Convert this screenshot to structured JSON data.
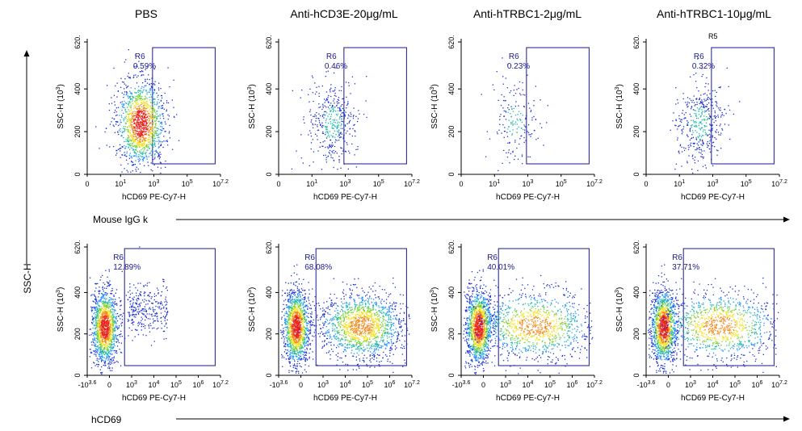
{
  "column_titles": [
    "PBS",
    "Anti-hCD3E-20μg/mL",
    "Anti-hTRBC1-2μg/mL",
    "Anti-hTRBC1-10μg/mL"
  ],
  "row_labels": [
    "Mouse IgG k",
    "hCD69"
  ],
  "y_side_label": "SSC-H",
  "stray_label": "R5",
  "colors": {
    "gate": "#1a1a8c",
    "gate_label": "#1a1a8c",
    "axis": "#000000",
    "stray": "#d4a14a"
  },
  "chart_data": [
    {
      "type": "scatter",
      "row": 0,
      "col": 0,
      "title": "PBS",
      "xlabel": "hCD69 PE-Cy7-H",
      "ylabel": "SSC-H (10^3)",
      "x_ticks": [
        "0",
        "10^1",
        "10^3",
        "10^5",
        "10^7.2"
      ],
      "y_ticks": [
        "0",
        "200",
        "400",
        "620."
      ],
      "ylim": [
        0,
        620
      ],
      "gate": {
        "name": "R6",
        "percent": "0.59%"
      },
      "density": "high"
    },
    {
      "type": "scatter",
      "row": 0,
      "col": 1,
      "title": "Anti-hCD3E-20μg/mL",
      "xlabel": "hCD69 PE-Cy7-H",
      "ylabel": "SSC-H (10^3)",
      "x_ticks": [
        "0",
        "10^1",
        "10^3",
        "10^5",
        "10^7.2"
      ],
      "y_ticks": [
        "0",
        "200",
        "400",
        "620."
      ],
      "ylim": [
        0,
        620
      ],
      "gate": {
        "name": "R6",
        "percent": "0.46%"
      },
      "density": "medium"
    },
    {
      "type": "scatter",
      "row": 0,
      "col": 2,
      "title": "Anti-hTRBC1-2μg/mL",
      "xlabel": "hCD69 PE-Cy7-H",
      "ylabel": "SSC-H (10^3)",
      "x_ticks": [
        "0",
        "10^1",
        "10^3",
        "10^5",
        "10^7.2"
      ],
      "y_ticks": [
        "0",
        "200",
        "400",
        "620."
      ],
      "ylim": [
        0,
        620
      ],
      "gate": {
        "name": "R6",
        "percent": "0.23%"
      },
      "density": "low"
    },
    {
      "type": "scatter",
      "row": 0,
      "col": 3,
      "title": "Anti-hTRBC1-10μg/mL",
      "xlabel": "hCD69 PE-Cy7-H",
      "ylabel": "SSC-H (10^3)",
      "x_ticks": [
        "0",
        "10^1",
        "10^3",
        "10^5",
        "10^7.2"
      ],
      "y_ticks": [
        "0",
        "200",
        "400",
        "620."
      ],
      "ylim": [
        0,
        620
      ],
      "gate": {
        "name": "R6",
        "percent": "0.32%"
      },
      "density": "medium"
    },
    {
      "type": "scatter",
      "row": 1,
      "col": 0,
      "xlabel": "hCD69 PE-Cy7-H",
      "ylabel": "SSC-H (10^3)",
      "x_ticks": [
        "-10^3.6",
        "0",
        "10^3",
        "10^4",
        "10^5",
        "10^6",
        "10^7.2"
      ],
      "y_ticks": [
        "0",
        "200",
        "400",
        "620."
      ],
      "ylim": [
        0,
        620
      ],
      "gate": {
        "name": "R6",
        "percent": "12.89%"
      },
      "density": "high"
    },
    {
      "type": "scatter",
      "row": 1,
      "col": 1,
      "xlabel": "hCD69 PE-Cy7-H",
      "ylabel": "SSC-H (10^3)",
      "x_ticks": [
        "-10^3.6",
        "0",
        "10^3",
        "10^4",
        "10^5",
        "10^6",
        "10^7.2"
      ],
      "y_ticks": [
        "0",
        "200",
        "400",
        "620."
      ],
      "ylim": [
        0,
        620
      ],
      "gate": {
        "name": "R6",
        "percent": "68.08%"
      },
      "density": "high"
    },
    {
      "type": "scatter",
      "row": 1,
      "col": 2,
      "xlabel": "hCD69 PE-Cy7-H",
      "ylabel": "SSC-H (10^3)",
      "x_ticks": [
        "-10^3.6",
        "0",
        "10^3",
        "10^4",
        "10^5",
        "10^6",
        "10^7.2"
      ],
      "y_ticks": [
        "0",
        "200",
        "400",
        "620."
      ],
      "ylim": [
        0,
        620
      ],
      "gate": {
        "name": "R6",
        "percent": "40.01%"
      },
      "density": "high"
    },
    {
      "type": "scatter",
      "row": 1,
      "col": 3,
      "xlabel": "hCD69 PE-Cy7-H",
      "ylabel": "SSC-H (10^3)",
      "x_ticks": [
        "-10^3.6",
        "0",
        "10^3",
        "10^4",
        "10^5",
        "10^6",
        "10^7.2"
      ],
      "y_ticks": [
        "0",
        "200",
        "400",
        "620."
      ],
      "ylim": [
        0,
        620
      ],
      "gate": {
        "name": "R6",
        "percent": "37.71%"
      },
      "density": "high"
    }
  ]
}
